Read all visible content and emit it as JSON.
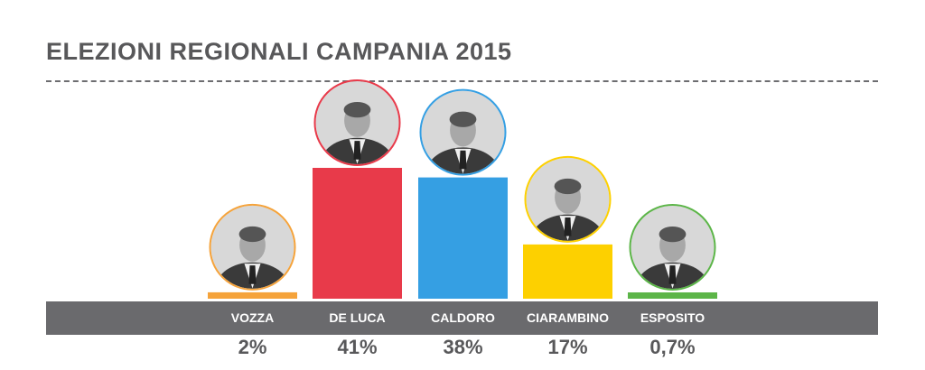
{
  "title": "ELEZIONI REGIONALI CAMPANIA 2015",
  "chart_data": {
    "type": "bar",
    "title": "ELEZIONI REGIONALI CAMPANIA 2015",
    "categories": [
      "VOZZA",
      "DE LUCA",
      "CALDORO",
      "CIARAMBINO",
      "ESPOSITO"
    ],
    "values": [
      2,
      41,
      38,
      17,
      0.7
    ],
    "value_labels": [
      "2%",
      "41%",
      "38%",
      "17%",
      "0,7%"
    ],
    "colors": [
      "#f5a33b",
      "#e83a4a",
      "#359fe3",
      "#fdd000",
      "#5cb548"
    ],
    "unit": "%",
    "ylim": [
      0,
      45
    ],
    "grid": false,
    "legend": "none",
    "portraits": [
      "portrait-vozza",
      "portrait-de-luca",
      "portrait-caldoro",
      "portrait-ciarambino",
      "portrait-esposito"
    ]
  }
}
